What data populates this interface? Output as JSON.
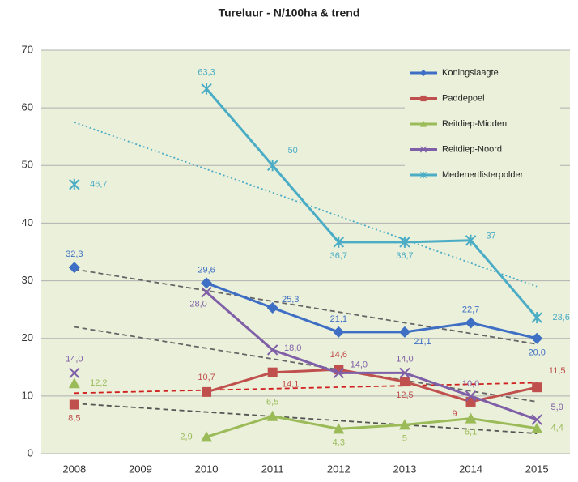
{
  "chart_data": {
    "type": "line",
    "title": "Tureluur - N/100ha & trend",
    "categories": [
      "2008",
      "2009",
      "2010",
      "2011",
      "2012",
      "2013",
      "2014",
      "2015"
    ],
    "ylim": [
      0,
      70
    ],
    "yticks": [
      0,
      10,
      20,
      30,
      40,
      50,
      60,
      70
    ],
    "grid": true,
    "legend": "top-right",
    "series": [
      {
        "name": "Koningslaagte",
        "color": "#3f6fc5",
        "marker": "diamond",
        "values": [
          32.3,
          null,
          29.6,
          25.3,
          21.1,
          21.1,
          22.7,
          20.0
        ],
        "value_labels": [
          "32,3",
          null,
          "29,6",
          "25,3",
          "21,1",
          "21,1",
          "22,7",
          "20,0"
        ],
        "trend": [
          32,
          19
        ],
        "trend_color": "#666666"
      },
      {
        "name": "Paddepoel",
        "color": "#c0504d",
        "marker": "square",
        "values": [
          8.5,
          null,
          10.7,
          14.1,
          14.6,
          12.5,
          9,
          11.5
        ],
        "value_labels": [
          "8,5",
          null,
          "10,7",
          "14,1",
          "14,6",
          "12,5",
          "9",
          "11,5"
        ],
        "trend": [
          10.5,
          12.3
        ],
        "trend_color": "#d02020"
      },
      {
        "name": "Reitdiep-Midden",
        "color": "#9bbb59",
        "marker": "triangle",
        "values": [
          12.2,
          null,
          2.9,
          6.5,
          4.3,
          5,
          6.1,
          4.4
        ],
        "value_labels": [
          "12,2",
          null,
          "2,9",
          "6,5",
          "4,3",
          "5",
          "6,1",
          "4,4"
        ],
        "trend": [
          8.7,
          3.5
        ],
        "trend_color": "#555555"
      },
      {
        "name": "Reitdiep-Noord",
        "color": "#7f5fa8",
        "marker": "x",
        "values": [
          14.0,
          null,
          28.0,
          18.0,
          14.0,
          14.0,
          10.0,
          5.9
        ],
        "value_labels": [
          "14,0",
          null,
          "28,0",
          "18,0",
          "14,0",
          "14,0",
          "10,0",
          "5,9"
        ],
        "trend": [
          22,
          9
        ],
        "trend_color": "#666666"
      },
      {
        "name": "Medenertlisterpolder",
        "color": "#4bacc6",
        "marker": "star",
        "values": [
          46.7,
          null,
          63.3,
          50,
          36.7,
          36.7,
          37,
          23.6
        ],
        "value_labels": [
          "46,7",
          null,
          "63,3",
          "50",
          "36,7",
          "36,7",
          "37",
          "23,6"
        ],
        "trend": [
          57.5,
          29
        ],
        "trend_color": "#4bacc6"
      }
    ]
  }
}
